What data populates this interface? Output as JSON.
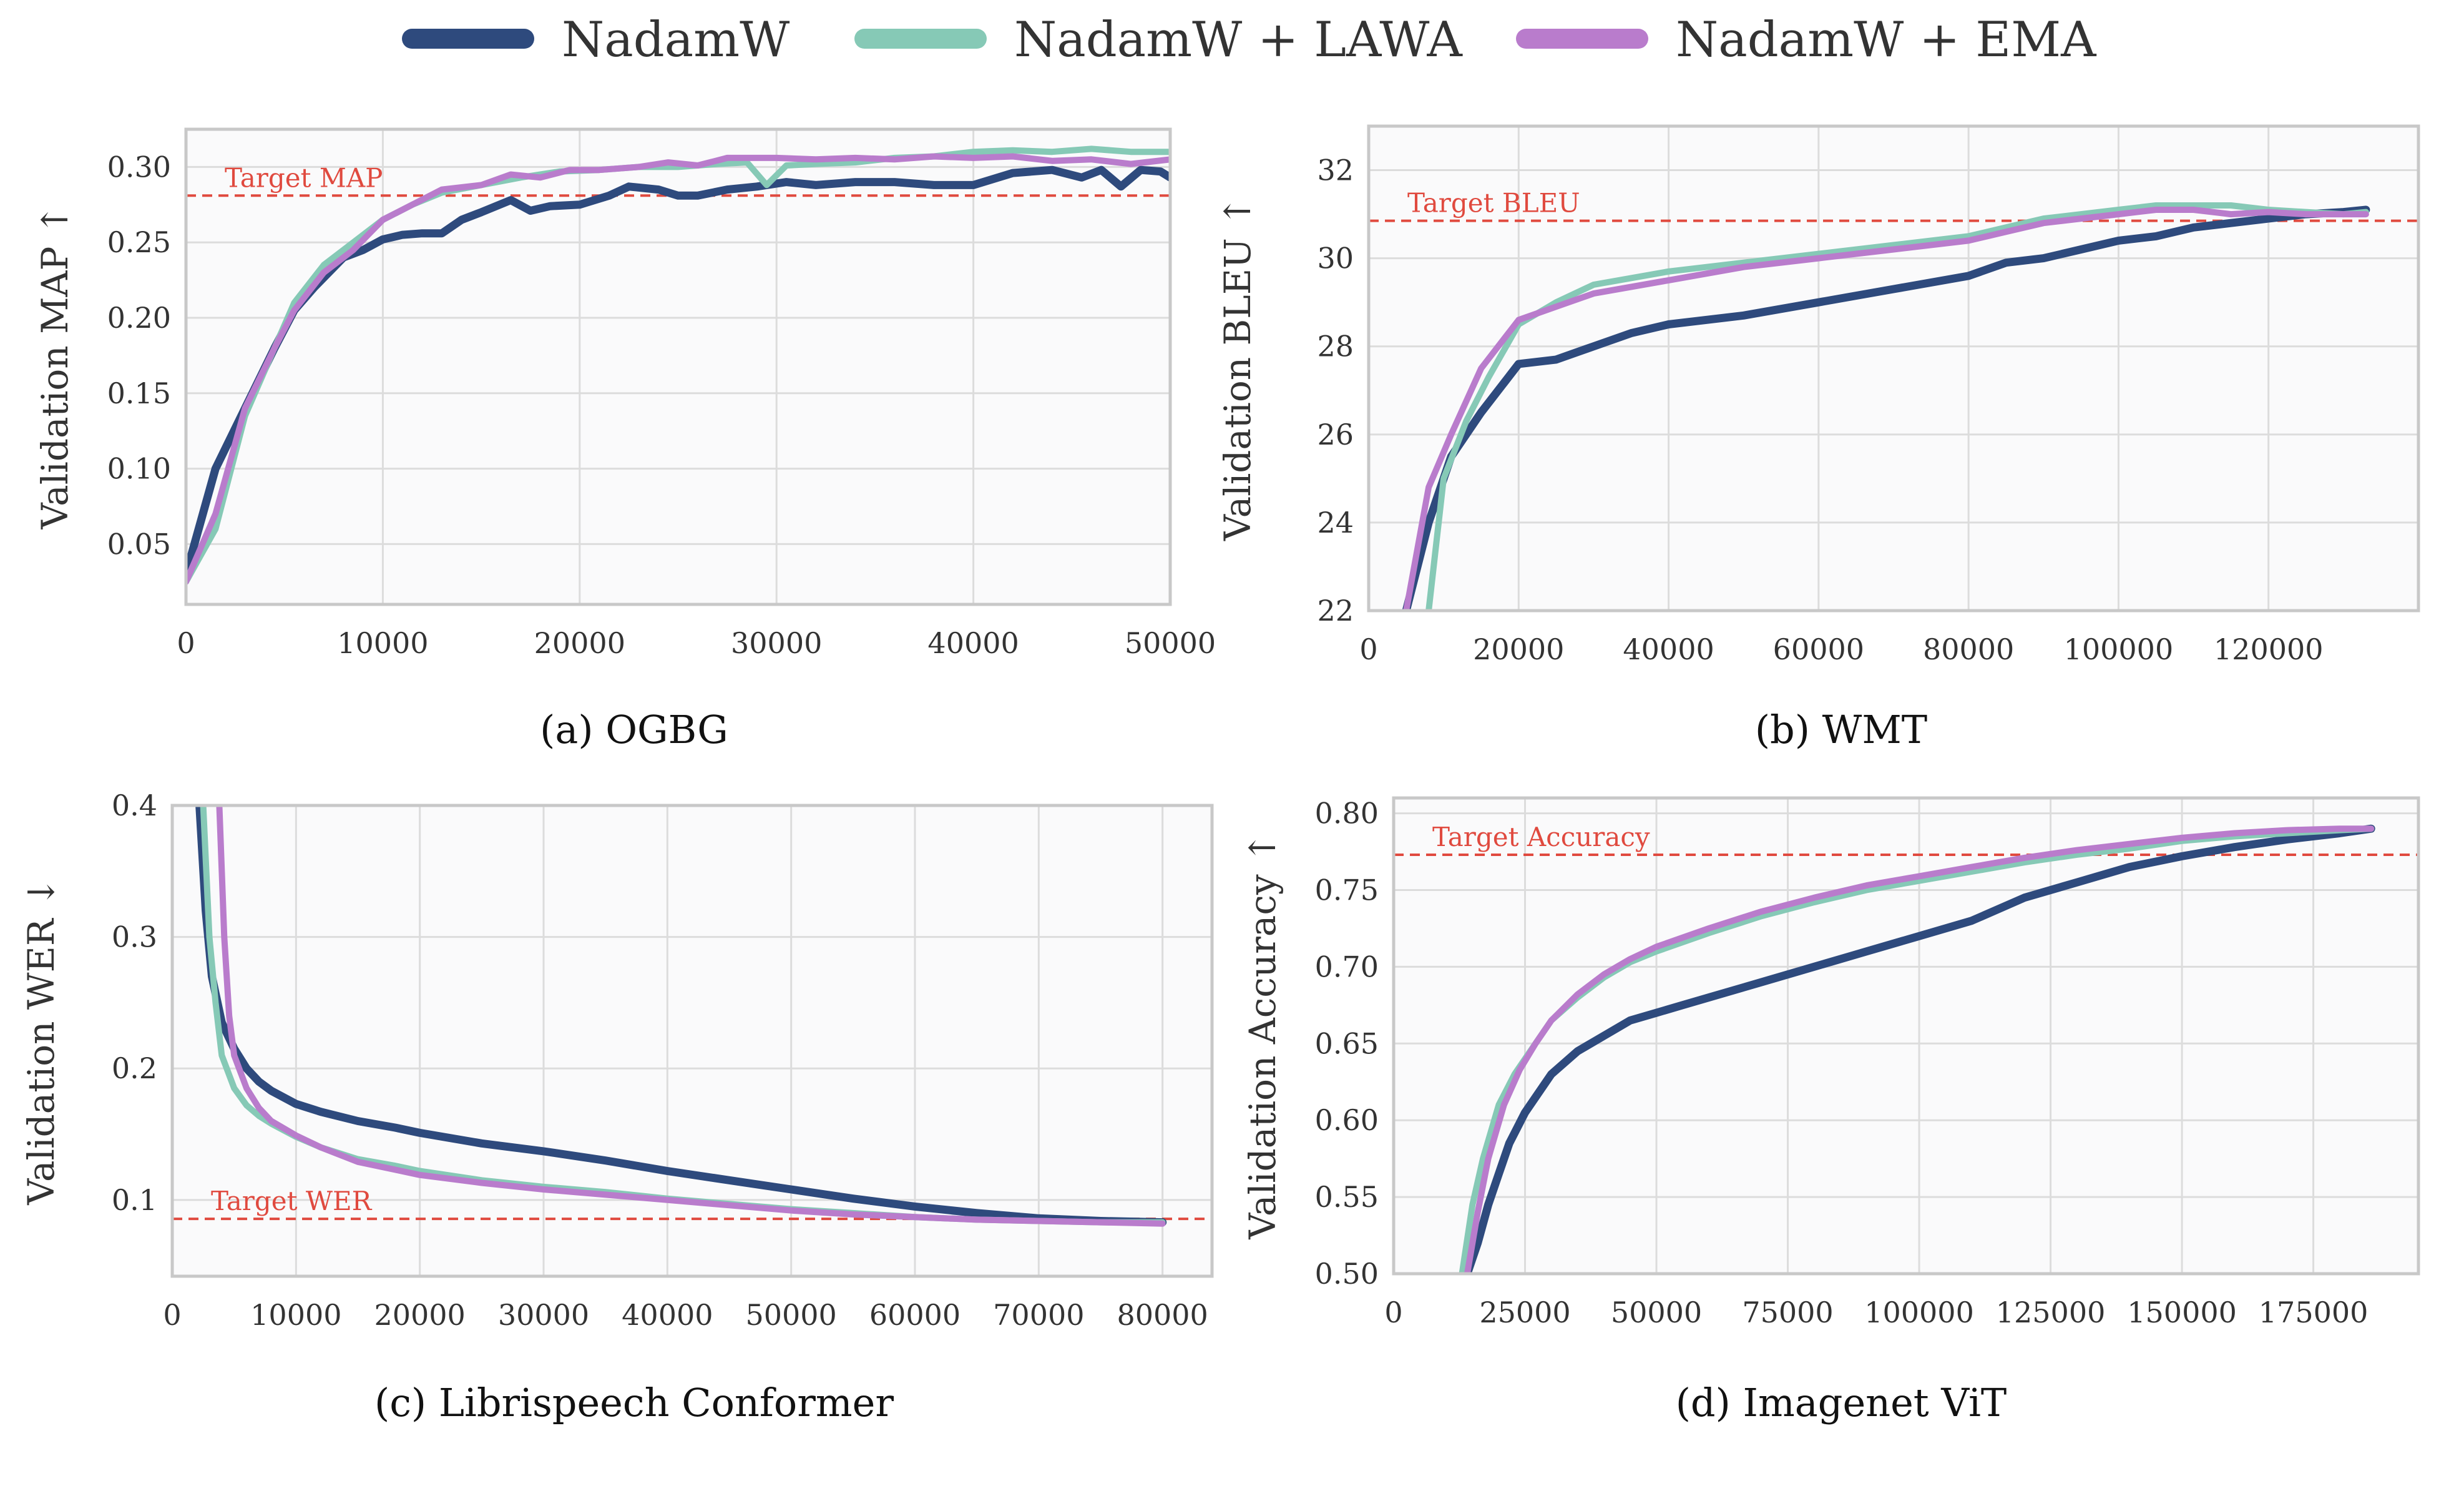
{
  "legend": [
    {
      "name": "NadamW",
      "color": "#2e4a7d"
    },
    {
      "name": "NadamW + LAWA",
      "color": "#86c9b6"
    },
    {
      "name": "NadamW + EMA",
      "color": "#b97ccc"
    }
  ],
  "chart_data": [
    {
      "type": "line",
      "caption": "(a) OGBG",
      "ylabel": "Validation MAP ↑",
      "xlim": [
        0,
        50000
      ],
      "ylim": [
        0.01,
        0.325
      ],
      "xticks": [
        0,
        10000,
        20000,
        30000,
        40000,
        50000
      ],
      "xtick_labels": [
        "0",
        "10000",
        "20000",
        "30000",
        "40000",
        "50000"
      ],
      "yticks": [
        0.05,
        0.1,
        0.15,
        0.2,
        0.25,
        0.3
      ],
      "ytick_labels": [
        "0.05",
        "0.10",
        "0.15",
        "0.20",
        "0.25",
        "0.30"
      ],
      "target": {
        "label": "Target MAP",
        "value": 0.281
      },
      "grid": true,
      "series": [
        {
          "name": "NadamW",
          "x": [
            0,
            1500,
            3000,
            4500,
            5500,
            6500,
            8000,
            9000,
            10000,
            11000,
            12000,
            13000,
            14000,
            15000,
            16500,
            17500,
            18500,
            20000,
            21500,
            22500,
            24000,
            25000,
            26000,
            27500,
            29000,
            30500,
            32000,
            34000,
            36000,
            38000,
            40000,
            42000,
            44000,
            45500,
            46500,
            47500,
            48500,
            49500,
            50000
          ],
          "y": [
            0.03,
            0.1,
            0.14,
            0.18,
            0.205,
            0.22,
            0.24,
            0.245,
            0.252,
            0.255,
            0.256,
            0.256,
            0.265,
            0.27,
            0.278,
            0.271,
            0.274,
            0.275,
            0.281,
            0.287,
            0.285,
            0.281,
            0.281,
            0.285,
            0.287,
            0.29,
            0.288,
            0.29,
            0.29,
            0.288,
            0.288,
            0.296,
            0.298,
            0.293,
            0.298,
            0.287,
            0.298,
            0.297,
            0.293
          ]
        },
        {
          "name": "NadamW + LAWA",
          "x": [
            0,
            1500,
            3000,
            4500,
            5500,
            7000,
            8500,
            10000,
            11500,
            13000,
            15000,
            17000,
            19000,
            21000,
            23000,
            25000,
            27000,
            28500,
            29500,
            30500,
            32000,
            34000,
            36000,
            38000,
            40000,
            42000,
            44000,
            46000,
            48000,
            50000
          ],
          "y": [
            0.025,
            0.06,
            0.135,
            0.18,
            0.21,
            0.235,
            0.25,
            0.265,
            0.275,
            0.283,
            0.288,
            0.293,
            0.297,
            0.298,
            0.3,
            0.3,
            0.302,
            0.303,
            0.288,
            0.301,
            0.302,
            0.303,
            0.306,
            0.307,
            0.31,
            0.311,
            0.31,
            0.312,
            0.31,
            0.31
          ]
        },
        {
          "name": "NadamW + EMA",
          "x": [
            0,
            1500,
            3000,
            4500,
            5500,
            7000,
            8500,
            10000,
            11500,
            13000,
            15000,
            16500,
            18000,
            19500,
            21000,
            23000,
            24500,
            26000,
            27500,
            28500,
            30000,
            32000,
            34000,
            36000,
            38000,
            40000,
            42000,
            44000,
            46000,
            48000,
            50000
          ],
          "y": [
            0.025,
            0.07,
            0.14,
            0.18,
            0.205,
            0.23,
            0.245,
            0.265,
            0.275,
            0.285,
            0.288,
            0.295,
            0.293,
            0.298,
            0.298,
            0.3,
            0.303,
            0.301,
            0.306,
            0.306,
            0.306,
            0.305,
            0.306,
            0.305,
            0.307,
            0.306,
            0.307,
            0.304,
            0.305,
            0.302,
            0.305
          ]
        }
      ]
    },
    {
      "type": "line",
      "caption": "(b) WMT",
      "ylabel": "Validation BLEU ↑",
      "xlim": [
        0,
        140000
      ],
      "ylim": [
        22,
        33
      ],
      "xticks": [
        0,
        20000,
        40000,
        60000,
        80000,
        100000,
        120000
      ],
      "xtick_labels": [
        "0",
        "20000",
        "40000",
        "60000",
        "80000",
        "100000",
        "120000"
      ],
      "yticks": [
        22,
        24,
        26,
        28,
        30,
        32
      ],
      "ytick_labels": [
        "22",
        "24",
        "26",
        "28",
        "30",
        "32"
      ],
      "target": {
        "label": "Target BLEU",
        "value": 30.85
      },
      "grid": true,
      "series": [
        {
          "name": "NadamW",
          "x": [
            5000,
            8000,
            11000,
            15000,
            20000,
            25000,
            30000,
            35000,
            40000,
            50000,
            60000,
            70000,
            80000,
            85000,
            90000,
            95000,
            100000,
            105000,
            110000,
            115000,
            120000,
            125000,
            130000,
            133000
          ],
          "y": [
            22.0,
            24.0,
            25.5,
            26.5,
            27.6,
            27.7,
            28.0,
            28.3,
            28.5,
            28.7,
            29.0,
            29.3,
            29.6,
            29.9,
            30.0,
            30.2,
            30.4,
            30.5,
            30.7,
            30.8,
            30.9,
            31.0,
            31.05,
            31.1
          ]
        },
        {
          "name": "NadamW + LAWA",
          "x": [
            8000,
            10000,
            13000,
            16000,
            20000,
            25000,
            30000,
            40000,
            50000,
            60000,
            70000,
            80000,
            85000,
            90000,
            95000,
            100000,
            105000,
            110000,
            115000,
            120000,
            125000,
            130000,
            133000
          ],
          "y": [
            22.0,
            25.0,
            26.3,
            27.3,
            28.5,
            29.0,
            29.4,
            29.7,
            29.9,
            30.1,
            30.3,
            30.5,
            30.7,
            30.9,
            31.0,
            31.1,
            31.2,
            31.2,
            31.2,
            31.1,
            31.05,
            31.0,
            31.05
          ]
        },
        {
          "name": "NadamW + EMA",
          "x": [
            5000,
            8000,
            11000,
            15000,
            20000,
            25000,
            30000,
            40000,
            50000,
            60000,
            70000,
            80000,
            85000,
            90000,
            95000,
            100000,
            105000,
            110000,
            115000,
            120000,
            125000,
            130000,
            133000
          ],
          "y": [
            22.0,
            24.8,
            26.0,
            27.5,
            28.6,
            28.9,
            29.2,
            29.5,
            29.8,
            30.0,
            30.2,
            30.4,
            30.6,
            30.8,
            30.9,
            31.0,
            31.1,
            31.1,
            31.0,
            31.05,
            31.0,
            31.0,
            31.0
          ]
        }
      ]
    },
    {
      "type": "line",
      "caption": "(c) Librispeech Conformer",
      "ylabel": "Validation WER ↓",
      "xlim": [
        0,
        84000
      ],
      "ylim": [
        0.042,
        0.4
      ],
      "xticks": [
        0,
        10000,
        20000,
        30000,
        40000,
        50000,
        60000,
        70000,
        80000
      ],
      "xtick_labels": [
        "0",
        "10000",
        "20000",
        "30000",
        "40000",
        "50000",
        "60000",
        "70000",
        "80000"
      ],
      "yticks": [
        0.1,
        0.2,
        0.3,
        0.4
      ],
      "ytick_labels": [
        "0.1",
        "0.2",
        "0.3",
        "0.4"
      ],
      "target": {
        "label": "Target WER",
        "value": 0.0856
      },
      "grid": true,
      "series": [
        {
          "name": "NadamW",
          "x": [
            2200,
            2700,
            3200,
            4000,
            5000,
            6000,
            7000,
            8000,
            10000,
            12000,
            15000,
            18000,
            20000,
            25000,
            30000,
            35000,
            40000,
            45000,
            50000,
            55000,
            60000,
            65000,
            70000,
            75000,
            80000
          ],
          "y": [
            0.4,
            0.32,
            0.27,
            0.235,
            0.215,
            0.2,
            0.19,
            0.183,
            0.173,
            0.167,
            0.16,
            0.155,
            0.151,
            0.143,
            0.137,
            0.13,
            0.122,
            0.115,
            0.108,
            0.101,
            0.095,
            0.09,
            0.086,
            0.084,
            0.083
          ]
        },
        {
          "name": "NadamW + LAWA",
          "x": [
            2500,
            3000,
            3500,
            4000,
            5000,
            6000,
            7000,
            8000,
            10000,
            12000,
            15000,
            18000,
            20000,
            25000,
            30000,
            35000,
            40000,
            45000,
            50000,
            55000,
            60000,
            65000,
            70000,
            75000,
            80000
          ],
          "y": [
            0.4,
            0.3,
            0.25,
            0.21,
            0.185,
            0.172,
            0.164,
            0.158,
            0.148,
            0.14,
            0.131,
            0.126,
            0.122,
            0.115,
            0.11,
            0.106,
            0.101,
            0.097,
            0.093,
            0.09,
            0.087,
            0.085,
            0.084,
            0.083,
            0.083
          ]
        },
        {
          "name": "NadamW + EMA",
          "x": [
            3800,
            4200,
            4600,
            5000,
            6000,
            7000,
            8000,
            10000,
            12000,
            15000,
            18000,
            20000,
            25000,
            30000,
            35000,
            40000,
            45000,
            50000,
            55000,
            60000,
            65000,
            70000,
            75000,
            80000
          ],
          "y": [
            0.4,
            0.3,
            0.24,
            0.21,
            0.185,
            0.17,
            0.16,
            0.149,
            0.14,
            0.129,
            0.123,
            0.119,
            0.113,
            0.108,
            0.104,
            0.1,
            0.096,
            0.092,
            0.089,
            0.087,
            0.085,
            0.084,
            0.083,
            0.082
          ]
        }
      ]
    },
    {
      "type": "line",
      "caption": "(d) Imagenet ViT",
      "ylabel": "Validation Accuracy ↑",
      "xlim": [
        0,
        195000
      ],
      "ylim": [
        0.5,
        0.81
      ],
      "xticks": [
        0,
        25000,
        50000,
        75000,
        100000,
        125000,
        150000,
        175000
      ],
      "xtick_labels": [
        "0",
        "25000",
        "50000",
        "75000",
        "100000",
        "125000",
        "150000",
        "175000"
      ],
      "yticks": [
        0.5,
        0.55,
        0.6,
        0.65,
        0.7,
        0.75,
        0.8
      ],
      "ytick_labels": [
        "0.50",
        "0.55",
        "0.60",
        "0.65",
        "0.70",
        "0.75",
        "0.80"
      ],
      "target": {
        "label": "Target Accuracy",
        "value": 0.773
      },
      "grid": true,
      "series": [
        {
          "name": "NadamW",
          "x": [
            14000,
            16000,
            18000,
            20000,
            22000,
            25000,
            30000,
            35000,
            40000,
            45000,
            50000,
            55000,
            60000,
            70000,
            80000,
            90000,
            100000,
            110000,
            120000,
            130000,
            140000,
            150000,
            160000,
            170000,
            180000,
            186000
          ],
          "y": [
            0.5,
            0.52,
            0.545,
            0.565,
            0.585,
            0.605,
            0.63,
            0.645,
            0.655,
            0.665,
            0.67,
            0.675,
            0.68,
            0.69,
            0.7,
            0.71,
            0.72,
            0.73,
            0.745,
            0.755,
            0.765,
            0.772,
            0.778,
            0.783,
            0.787,
            0.79
          ]
        },
        {
          "name": "NadamW + LAWA",
          "x": [
            13000,
            15000,
            17000,
            20000,
            23000,
            26000,
            30000,
            35000,
            40000,
            45000,
            50000,
            60000,
            70000,
            80000,
            90000,
            100000,
            110000,
            120000,
            130000,
            140000,
            150000,
            160000,
            170000,
            180000,
            186000
          ],
          "y": [
            0.5,
            0.545,
            0.575,
            0.61,
            0.63,
            0.645,
            0.665,
            0.68,
            0.693,
            0.703,
            0.71,
            0.722,
            0.733,
            0.742,
            0.75,
            0.756,
            0.762,
            0.768,
            0.773,
            0.777,
            0.782,
            0.785,
            0.787,
            0.789,
            0.79
          ]
        },
        {
          "name": "NadamW + EMA",
          "x": [
            14000,
            16000,
            18000,
            21000,
            24000,
            27000,
            30000,
            35000,
            40000,
            45000,
            50000,
            60000,
            70000,
            80000,
            90000,
            100000,
            110000,
            120000,
            130000,
            140000,
            150000,
            160000,
            170000,
            180000,
            186000
          ],
          "y": [
            0.5,
            0.54,
            0.575,
            0.61,
            0.633,
            0.65,
            0.665,
            0.682,
            0.695,
            0.705,
            0.713,
            0.725,
            0.736,
            0.745,
            0.753,
            0.759,
            0.765,
            0.771,
            0.776,
            0.78,
            0.784,
            0.787,
            0.789,
            0.79,
            0.79
          ]
        }
      ]
    }
  ]
}
